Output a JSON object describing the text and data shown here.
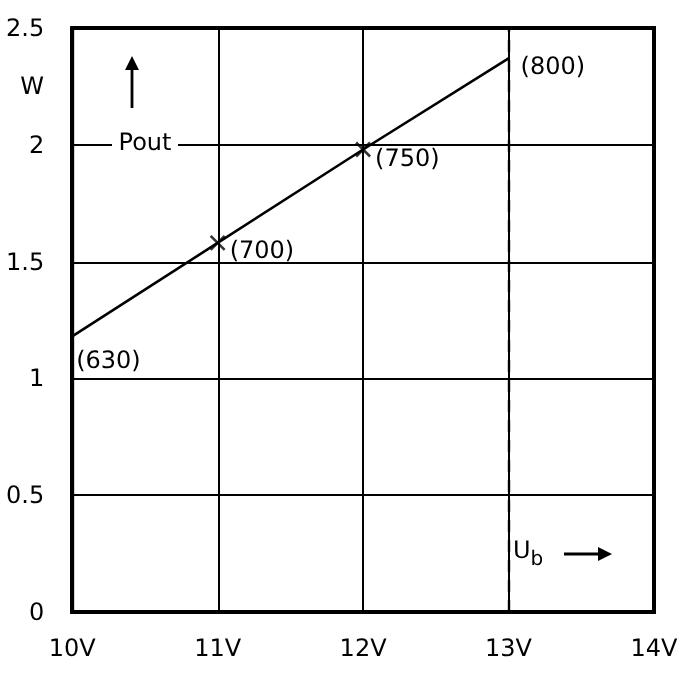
{
  "chart_data": {
    "type": "line",
    "xlabel": "U$_{b}$",
    "ylabel": "Pout",
    "annotations": [
      "W",
      {
        "text": "(630)",
        "x": 10,
        "y": 1.18
      },
      {
        "text": "(700)",
        "x": 11,
        "y": 1.58
      },
      {
        "text": "(750)",
        "x": 12,
        "y": 1.98
      },
      {
        "text": "(800)",
        "x": 13,
        "y": 2.37
      }
    ],
    "x": [
      10,
      11,
      12,
      13
    ],
    "series": [
      {
        "type": "line",
        "color": "#000000",
        "marker": "none",
        "values": [
          1.18,
          1.58,
          1.98,
          2.37
        ]
      },
      {
        "type": "scatter",
        "color": "#000000",
        "marker": "cross",
        "x": [
          11,
          12
        ],
        "values": [
          1.58,
          1.98
        ]
      }
    ],
    "xlim": [
      10,
      14
    ],
    "xticks": [
      {
        "value": 10,
        "label": "10V"
      },
      {
        "value": 11,
        "label": "11V"
      },
      {
        "value": 12,
        "label": "12V"
      },
      {
        "value": 13,
        "label": "13V"
      },
      {
        "value": 14,
        "label": "14V"
      }
    ],
    "ylim": [
      0,
      2.5
    ],
    "yticks": [
      0,
      0.5,
      1,
      1.5,
      2,
      2.5
    ],
    "grid": true,
    "ref_lines": [
      {
        "axis": "x",
        "value": 13,
        "color": "#000000",
        "line_style": "dashed"
      }
    ]
  }
}
